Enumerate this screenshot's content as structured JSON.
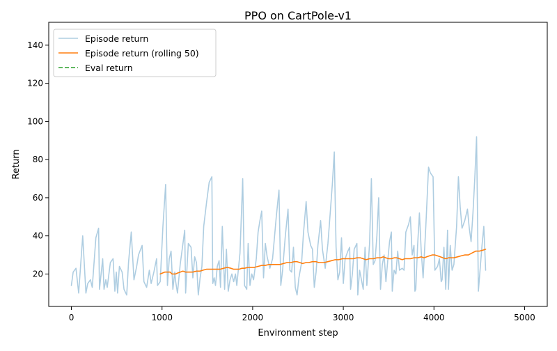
{
  "chart_data": {
    "type": "line",
    "title": "PPO on CartPole-v1",
    "xlabel": "Environment step",
    "ylabel": "Return",
    "xlim": [
      -250,
      5250
    ],
    "ylim": [
      3,
      152
    ],
    "xticks": [
      0,
      1000,
      2000,
      3000,
      4000,
      5000
    ],
    "yticks": [
      20,
      40,
      60,
      80,
      100,
      120,
      140
    ],
    "grid": false,
    "legend_position": "top-left",
    "series": [
      {
        "name": "Episode return",
        "color": "#aecde1",
        "style": "solid",
        "points": [
          [
            0,
            14
          ],
          [
            20,
            21
          ],
          [
            50,
            23
          ],
          [
            80,
            10
          ],
          [
            125,
            40
          ],
          [
            160,
            10
          ],
          [
            180,
            15
          ],
          [
            210,
            17
          ],
          [
            230,
            13
          ],
          [
            270,
            39
          ],
          [
            300,
            44
          ],
          [
            310,
            12
          ],
          [
            345,
            28
          ],
          [
            360,
            12
          ],
          [
            380,
            17
          ],
          [
            395,
            13
          ],
          [
            430,
            26
          ],
          [
            460,
            28
          ],
          [
            480,
            11
          ],
          [
            495,
            21
          ],
          [
            510,
            10
          ],
          [
            530,
            24
          ],
          [
            560,
            21
          ],
          [
            580,
            12
          ],
          [
            610,
            9
          ],
          [
            630,
            26
          ],
          [
            660,
            42
          ],
          [
            690,
            17
          ],
          [
            720,
            24
          ],
          [
            740,
            30
          ],
          [
            780,
            35
          ],
          [
            800,
            16
          ],
          [
            830,
            13
          ],
          [
            860,
            22
          ],
          [
            880,
            15
          ],
          [
            910,
            21
          ],
          [
            940,
            28
          ],
          [
            950,
            14
          ],
          [
            980,
            16
          ],
          [
            1010,
            45
          ],
          [
            1040,
            67
          ],
          [
            1060,
            14
          ],
          [
            1080,
            28
          ],
          [
            1100,
            32
          ],
          [
            1120,
            12
          ],
          [
            1140,
            21
          ],
          [
            1150,
            16
          ],
          [
            1170,
            10
          ],
          [
            1200,
            25
          ],
          [
            1250,
            43
          ],
          [
            1260,
            10
          ],
          [
            1290,
            36
          ],
          [
            1320,
            34
          ],
          [
            1340,
            18
          ],
          [
            1360,
            29
          ],
          [
            1380,
            26
          ],
          [
            1400,
            9
          ],
          [
            1420,
            18
          ],
          [
            1440,
            24
          ],
          [
            1460,
            45
          ],
          [
            1490,
            57
          ],
          [
            1520,
            68
          ],
          [
            1550,
            71
          ],
          [
            1560,
            15
          ],
          [
            1575,
            18
          ],
          [
            1590,
            14
          ],
          [
            1610,
            24
          ],
          [
            1630,
            27
          ],
          [
            1645,
            13
          ],
          [
            1665,
            45
          ],
          [
            1690,
            12
          ],
          [
            1710,
            33
          ],
          [
            1730,
            11
          ],
          [
            1750,
            17
          ],
          [
            1770,
            20
          ],
          [
            1790,
            16
          ],
          [
            1810,
            20
          ],
          [
            1825,
            14
          ],
          [
            1860,
            31
          ],
          [
            1890,
            70
          ],
          [
            1910,
            14
          ],
          [
            1935,
            12
          ],
          [
            1950,
            36
          ],
          [
            1970,
            14
          ],
          [
            1990,
            20
          ],
          [
            2010,
            17
          ],
          [
            2040,
            28
          ],
          [
            2060,
            42
          ],
          [
            2080,
            48
          ],
          [
            2100,
            53
          ],
          [
            2120,
            18
          ],
          [
            2140,
            36
          ],
          [
            2160,
            29
          ],
          [
            2190,
            23
          ],
          [
            2220,
            28
          ],
          [
            2260,
            50
          ],
          [
            2290,
            64
          ],
          [
            2310,
            14
          ],
          [
            2330,
            22
          ],
          [
            2360,
            40
          ],
          [
            2390,
            54
          ],
          [
            2410,
            22
          ],
          [
            2430,
            21
          ],
          [
            2450,
            34
          ],
          [
            2470,
            13
          ],
          [
            2490,
            9
          ],
          [
            2510,
            18
          ],
          [
            2540,
            26
          ],
          [
            2560,
            41
          ],
          [
            2590,
            58
          ],
          [
            2610,
            42
          ],
          [
            2640,
            35
          ],
          [
            2660,
            33
          ],
          [
            2680,
            13
          ],
          [
            2700,
            21
          ],
          [
            2720,
            35
          ],
          [
            2750,
            48
          ],
          [
            2770,
            33
          ],
          [
            2800,
            23
          ],
          [
            2830,
            36
          ],
          [
            2860,
            55
          ],
          [
            2880,
            68
          ],
          [
            2900,
            84
          ],
          [
            2920,
            34
          ],
          [
            2940,
            17
          ],
          [
            2960,
            21
          ],
          [
            2980,
            39
          ],
          [
            3000,
            15
          ],
          [
            3020,
            28
          ],
          [
            3050,
            32
          ],
          [
            3070,
            34
          ],
          [
            3080,
            12
          ],
          [
            3100,
            20
          ],
          [
            3120,
            33
          ],
          [
            3150,
            36
          ],
          [
            3160,
            9
          ],
          [
            3180,
            22
          ],
          [
            3200,
            17
          ],
          [
            3220,
            12
          ],
          [
            3240,
            34
          ],
          [
            3260,
            14
          ],
          [
            3290,
            36
          ],
          [
            3310,
            70
          ],
          [
            3330,
            25
          ],
          [
            3350,
            27
          ],
          [
            3370,
            40
          ],
          [
            3390,
            60
          ],
          [
            3410,
            12
          ],
          [
            3430,
            25
          ],
          [
            3450,
            30
          ],
          [
            3470,
            16
          ],
          [
            3490,
            27
          ],
          [
            3510,
            37
          ],
          [
            3530,
            42
          ],
          [
            3540,
            11
          ],
          [
            3560,
            22
          ],
          [
            3580,
            20
          ],
          [
            3600,
            32
          ],
          [
            3620,
            22
          ],
          [
            3650,
            23
          ],
          [
            3670,
            22
          ],
          [
            3690,
            42
          ],
          [
            3720,
            46
          ],
          [
            3740,
            50
          ],
          [
            3760,
            30
          ],
          [
            3780,
            35
          ],
          [
            3790,
            11
          ],
          [
            3800,
            12
          ],
          [
            3820,
            35
          ],
          [
            3840,
            52
          ],
          [
            3860,
            32
          ],
          [
            3880,
            18
          ],
          [
            3910,
            45
          ],
          [
            3940,
            76
          ],
          [
            3960,
            73
          ],
          [
            3990,
            71
          ],
          [
            4010,
            22
          ],
          [
            4040,
            24
          ],
          [
            4060,
            28
          ],
          [
            4080,
            16
          ],
          [
            4090,
            17
          ],
          [
            4110,
            34
          ],
          [
            4130,
            12
          ],
          [
            4150,
            43
          ],
          [
            4160,
            12
          ],
          [
            4180,
            35
          ],
          [
            4200,
            22
          ],
          [
            4220,
            25
          ],
          [
            4250,
            45
          ],
          [
            4270,
            71
          ],
          [
            4290,
            55
          ],
          [
            4310,
            44
          ],
          [
            4340,
            48
          ],
          [
            4370,
            54
          ],
          [
            4390,
            44
          ],
          [
            4410,
            37
          ],
          [
            4430,
            52
          ],
          [
            4450,
            70
          ],
          [
            4470,
            92
          ],
          [
            4490,
            11
          ],
          [
            4510,
            23
          ],
          [
            4530,
            35
          ],
          [
            4550,
            45
          ],
          [
            4570,
            22
          ]
        ]
      },
      {
        "name": "Episode return (rolling 50)",
        "color": "#ff7f0e",
        "style": "solid",
        "points": [
          [
            980,
            20
          ],
          [
            1030,
            21
          ],
          [
            1060,
            21
          ],
          [
            1090,
            21
          ],
          [
            1110,
            20
          ],
          [
            1150,
            20
          ],
          [
            1170,
            20.5
          ],
          [
            1200,
            21
          ],
          [
            1230,
            21.5
          ],
          [
            1260,
            21
          ],
          [
            1300,
            21
          ],
          [
            1340,
            21
          ],
          [
            1380,
            21.5
          ],
          [
            1420,
            21.5
          ],
          [
            1450,
            22
          ],
          [
            1490,
            22.5
          ],
          [
            1530,
            22.5
          ],
          [
            1560,
            22.5
          ],
          [
            1600,
            22.5
          ],
          [
            1640,
            22.5
          ],
          [
            1680,
            23
          ],
          [
            1720,
            23.5
          ],
          [
            1760,
            23
          ],
          [
            1790,
            22.5
          ],
          [
            1820,
            22.5
          ],
          [
            1850,
            22.5
          ],
          [
            1880,
            23
          ],
          [
            1910,
            23
          ],
          [
            1950,
            23.5
          ],
          [
            1990,
            23.5
          ],
          [
            2020,
            23.5
          ],
          [
            2060,
            24
          ],
          [
            2100,
            24.5
          ],
          [
            2140,
            24.5
          ],
          [
            2180,
            25
          ],
          [
            2220,
            25
          ],
          [
            2260,
            25
          ],
          [
            2300,
            25
          ],
          [
            2340,
            25.5
          ],
          [
            2380,
            26
          ],
          [
            2420,
            26
          ],
          [
            2460,
            26.5
          ],
          [
            2490,
            26.5
          ],
          [
            2520,
            26
          ],
          [
            2550,
            25.5
          ],
          [
            2590,
            26
          ],
          [
            2620,
            26
          ],
          [
            2660,
            26.5
          ],
          [
            2700,
            26.5
          ],
          [
            2730,
            26
          ],
          [
            2760,
            26
          ],
          [
            2790,
            26
          ],
          [
            2830,
            26.5
          ],
          [
            2870,
            27
          ],
          [
            2910,
            27.5
          ],
          [
            2950,
            27.5
          ],
          [
            2990,
            28
          ],
          [
            3030,
            28
          ],
          [
            3070,
            28
          ],
          [
            3110,
            28
          ],
          [
            3150,
            28.5
          ],
          [
            3190,
            28.5
          ],
          [
            3220,
            28
          ],
          [
            3250,
            27.5
          ],
          [
            3290,
            28
          ],
          [
            3330,
            28
          ],
          [
            3370,
            28.5
          ],
          [
            3410,
            28.5
          ],
          [
            3440,
            29
          ],
          [
            3470,
            28.5
          ],
          [
            3500,
            28
          ],
          [
            3530,
            28
          ],
          [
            3560,
            28.5
          ],
          [
            3590,
            28.5
          ],
          [
            3620,
            28
          ],
          [
            3650,
            27.5
          ],
          [
            3680,
            28
          ],
          [
            3710,
            28
          ],
          [
            3740,
            28
          ],
          [
            3780,
            28.5
          ],
          [
            3820,
            28.5
          ],
          [
            3860,
            29
          ],
          [
            3890,
            28.5
          ],
          [
            3920,
            29
          ],
          [
            3950,
            29.5
          ],
          [
            3980,
            30
          ],
          [
            4010,
            30
          ],
          [
            4040,
            29.5
          ],
          [
            4070,
            29
          ],
          [
            4100,
            28.5
          ],
          [
            4130,
            28
          ],
          [
            4160,
            28.5
          ],
          [
            4190,
            28.5
          ],
          [
            4220,
            28.5
          ],
          [
            4260,
            29
          ],
          [
            4300,
            29.5
          ],
          [
            4340,
            30
          ],
          [
            4380,
            30
          ],
          [
            4420,
            31
          ],
          [
            4460,
            32
          ],
          [
            4500,
            32
          ],
          [
            4540,
            32.5
          ],
          [
            4570,
            33
          ]
        ]
      },
      {
        "name": "Eval return",
        "color": "#2ca02c",
        "style": "dashed",
        "points": []
      }
    ]
  }
}
